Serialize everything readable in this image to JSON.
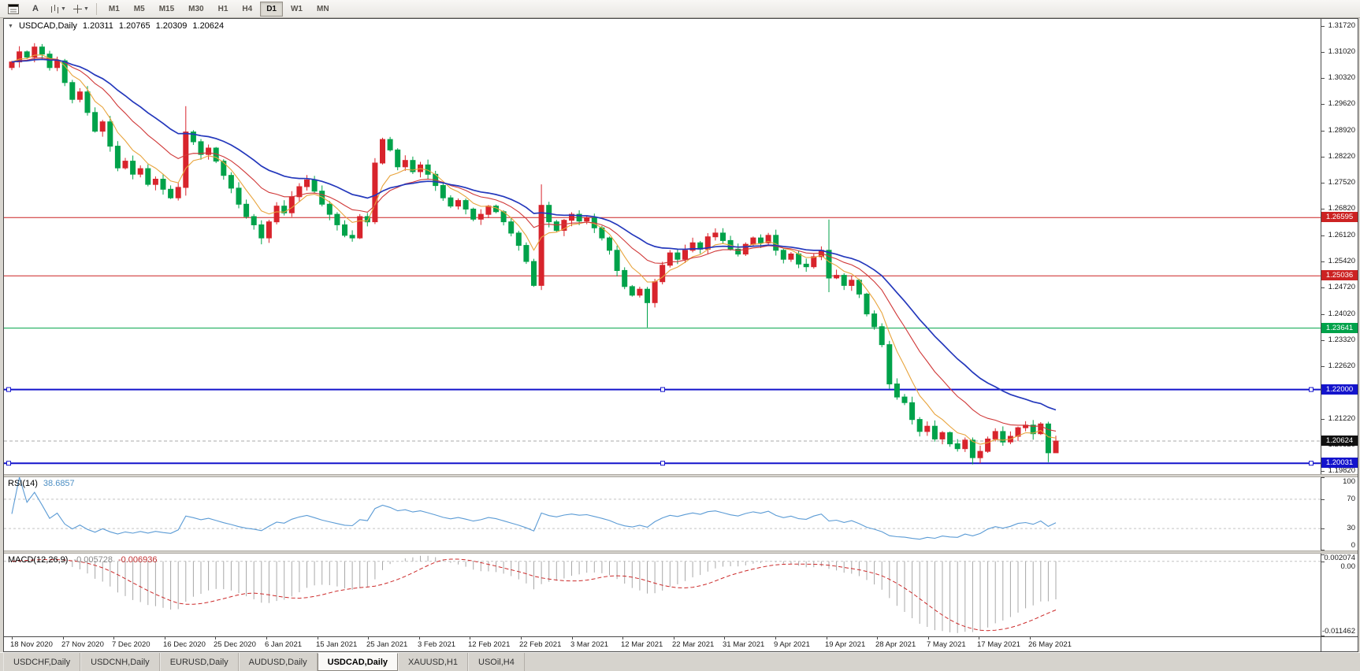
{
  "toolbar": {
    "letter_button": "A",
    "timeframes": [
      "M1",
      "M5",
      "M15",
      "M30",
      "H1",
      "H4",
      "D1",
      "W1",
      "MN"
    ],
    "active_timeframe": "D1"
  },
  "chart_data": {
    "type": "candlestick",
    "symbol_period": "USDCAD,Daily",
    "ohlc_title": {
      "open": "1.20311",
      "high": "1.20765",
      "low": "1.20309",
      "close": "1.20624"
    },
    "price_axis_ticks": [
      "1.31720",
      "1.31020",
      "1.30320",
      "1.29620",
      "1.28920",
      "1.28220",
      "1.27520",
      "1.26820",
      "1.26120",
      "1.25420",
      "1.24720",
      "1.24020",
      "1.23320",
      "1.22620",
      "1.21920",
      "1.21220",
      "1.20520",
      "1.19820"
    ],
    "price_range": {
      "max": 1.319,
      "min": 1.1972
    },
    "date_axis_ticks": [
      "18 Nov 2020",
      "27 Nov 2020",
      "7 Dec 2020",
      "16 Dec 2020",
      "25 Dec 2020",
      "6 Jan 2021",
      "15 Jan 2021",
      "25 Jan 2021",
      "3 Feb 2021",
      "12 Feb 2021",
      "22 Feb 2021",
      "3 Mar 2021",
      "12 Mar 2021",
      "22 Mar 2021",
      "31 Mar 2021",
      "9 Apr 2021",
      "19 Apr 2021",
      "28 Apr 2021",
      "7 May 2021",
      "17 May 2021",
      "26 May 2021"
    ],
    "first_open": 1.306,
    "closes": [
      1.3075,
      1.3102,
      1.3088,
      1.3115,
      1.3096,
      1.306,
      1.3078,
      1.302,
      1.2975,
      1.2995,
      1.294,
      1.289,
      1.2915,
      1.285,
      1.2792,
      1.281,
      1.2775,
      1.279,
      1.2748,
      1.2762,
      1.2735,
      1.2712,
      1.274,
      1.2888,
      1.2862,
      1.2828,
      1.2845,
      1.281,
      1.2772,
      1.2738,
      1.2695,
      1.2662,
      1.264,
      1.2605,
      1.2648,
      1.269,
      1.2672,
      1.2715,
      1.2742,
      1.276,
      1.273,
      1.2695,
      1.2668,
      1.264,
      1.2612,
      1.2605,
      1.2662,
      1.2648,
      1.2805,
      1.2868,
      1.284,
      1.2795,
      1.2812,
      1.2782,
      1.28,
      1.2775,
      1.2745,
      1.2712,
      1.269,
      1.2705,
      1.2682,
      1.2655,
      1.2668,
      1.269,
      1.2675,
      1.2648,
      1.2618,
      1.2585,
      1.2542,
      1.2478,
      1.2692,
      1.2648,
      1.2625,
      1.2652,
      1.2668,
      1.265,
      1.2658,
      1.2632,
      1.2605,
      1.2572,
      1.2518,
      1.2475,
      1.2452,
      1.2468,
      1.2432,
      1.2488,
      1.2532,
      1.2565,
      1.2548,
      1.2572,
      1.2592,
      1.2575,
      1.2608,
      1.2618,
      1.2598,
      1.2575,
      1.2562,
      1.2588,
      1.2605,
      1.2592,
      1.2612,
      1.2572,
      1.2548,
      1.2562,
      1.2535,
      1.2528,
      1.2555,
      1.2572,
      1.2498,
      1.2505,
      1.2478,
      1.2492,
      1.2455,
      1.2402,
      1.2368,
      1.232,
      1.2215,
      1.218,
      1.2165,
      1.212,
      1.2088,
      1.2102,
      1.2068,
      1.2085,
      1.2055,
      1.2042,
      1.2065,
      1.2018,
      1.2035,
      1.2068,
      1.2088,
      1.206,
      1.2075,
      1.2098,
      1.2105,
      1.2082,
      1.2108,
      1.20311,
      1.20624
    ],
    "special_candles": [
      [
        23,
        1.274,
        1.2957,
        1.2718,
        1.2888
      ],
      [
        33,
        1.264,
        1.2652,
        1.2588,
        1.2605
      ],
      [
        48,
        1.2648,
        1.2818,
        1.2642,
        1.2805
      ],
      [
        70,
        1.2478,
        1.2748,
        1.2466,
        1.2692
      ],
      [
        84,
        1.2468,
        1.2474,
        1.2366,
        1.2432
      ],
      [
        108,
        1.2572,
        1.2654,
        1.246,
        1.2498
      ],
      [
        116,
        1.232,
        1.233,
        1.2202,
        1.2215
      ],
      [
        127,
        1.2065,
        1.2072,
        1.2,
        1.2018
      ],
      [
        137,
        1.2108,
        1.2114,
        1.2006,
        1.20311
      ],
      [
        138,
        1.20311,
        1.20765,
        1.20309,
        1.20624
      ]
    ],
    "colors": {
      "bull": "#d8242c",
      "bear": "#00a24a",
      "ma_fast": "#e8a43c",
      "ma_mid": "#d03838",
      "ma_slow": "#2438bc",
      "rsi_line": "#5b9bd5",
      "macd_hist": "#a8a8a8",
      "macd_signal": "#cc2a2a"
    },
    "moving_averages": [
      {
        "period": 6,
        "color_key": "ma_fast",
        "width": 1.1
      },
      {
        "period": 14,
        "color_key": "ma_mid",
        "width": 1.1
      },
      {
        "period": 25,
        "color_key": "ma_slow",
        "width": 1.7
      }
    ],
    "levels": [
      {
        "price": 1.26595,
        "label": "1.26595",
        "color": "#cc2222",
        "width": 1,
        "selected": false
      },
      {
        "price": 1.25036,
        "label": "1.25036",
        "color": "#cc2222",
        "width": 1,
        "selected": false
      },
      {
        "price": 1.23641,
        "label": "1.23641",
        "color": "#00a24a",
        "width": 1,
        "selected": false
      },
      {
        "price": 1.22,
        "label": "1.22000",
        "color": "#1414cc",
        "width": 2,
        "selected": true
      },
      {
        "price": 1.20031,
        "label": "1.20031",
        "color": "#1414cc",
        "width": 2,
        "selected": true
      }
    ],
    "current_price": {
      "value": 1.20624,
      "label": "1.20624"
    }
  },
  "rsi": {
    "name": "RSI(14)",
    "value": "38.6857",
    "period": 14,
    "levels": [
      70,
      30
    ],
    "axis_ticks": [
      100,
      70,
      30,
      0
    ]
  },
  "macd": {
    "name": "MACD(12,26,9)",
    "fast": 12,
    "slow": 26,
    "signal": 9,
    "value_main": "-0.005728",
    "value_signal": "-0.006936",
    "axis_ticks": [
      "0.002074",
      "0.00",
      "-0.011462"
    ]
  },
  "tabs": [
    {
      "label": "USDCHF,Daily",
      "active": false
    },
    {
      "label": "USDCNH,Daily",
      "active": false
    },
    {
      "label": "EURUSD,Daily",
      "active": false
    },
    {
      "label": "AUDUSD,Daily",
      "active": false
    },
    {
      "label": "USDCAD,Daily",
      "active": true
    },
    {
      "label": "XAUUSD,H1",
      "active": false
    },
    {
      "label": "USOil,H4",
      "active": false
    }
  ]
}
